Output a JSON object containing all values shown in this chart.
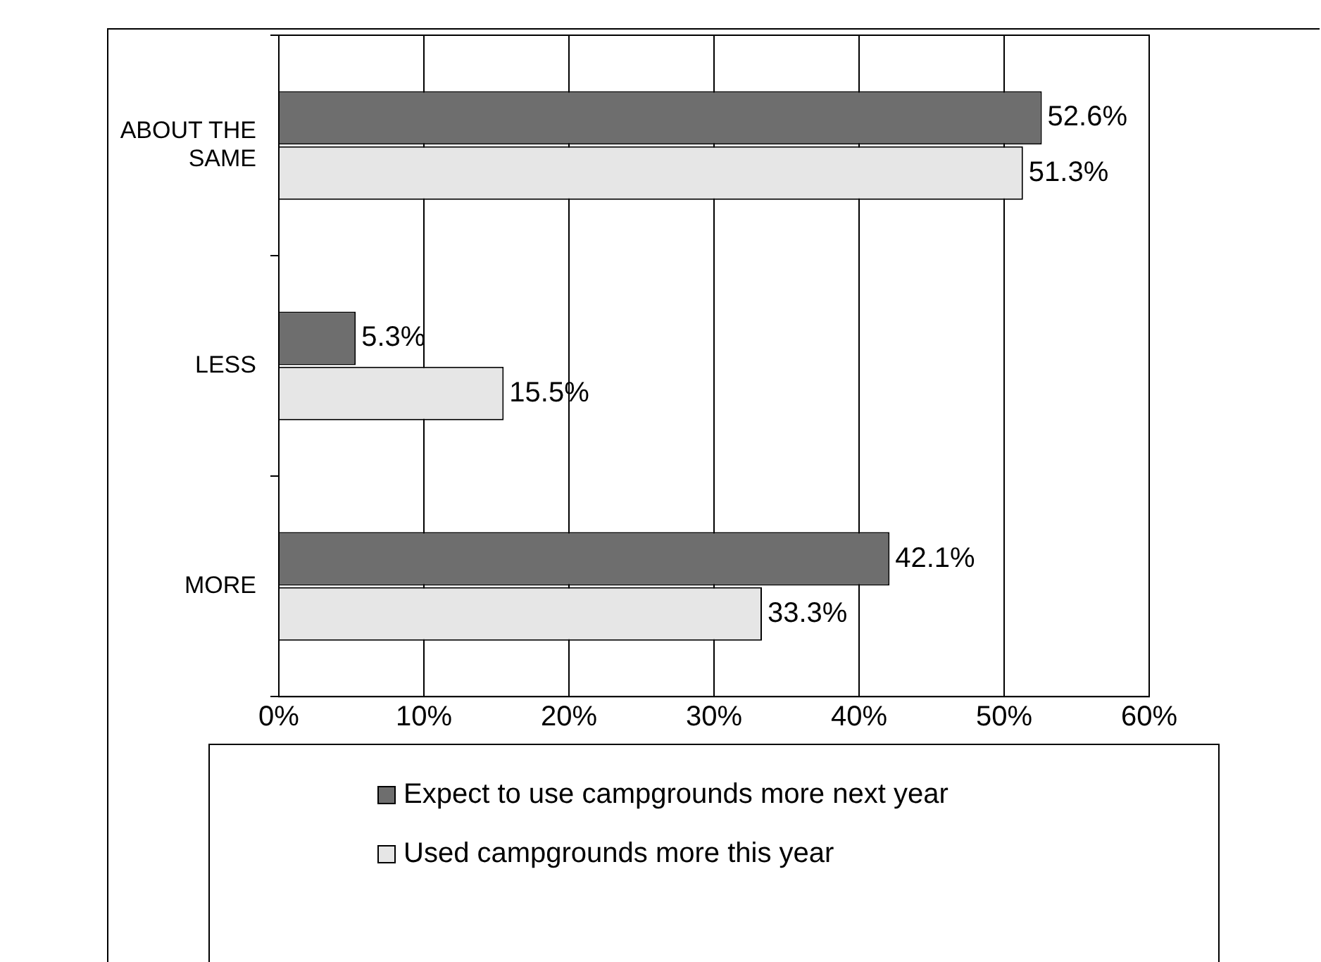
{
  "chart_data": {
    "type": "bar",
    "orientation": "horizontal",
    "categories": [
      "ABOUT THE SAME",
      "LESS",
      "MORE"
    ],
    "series": [
      {
        "name": "Expect to use campgrounds more next year",
        "color": "#6e6e6e",
        "values": [
          52.6,
          5.3,
          42.1
        ],
        "value_labels": [
          "52.6%",
          "5.3%",
          "42.1%"
        ]
      },
      {
        "name": "Used campgrounds more this year",
        "color": "#e6e6e6",
        "values": [
          51.3,
          15.5,
          33.3
        ],
        "value_labels": [
          "51.3%",
          "15.5%",
          "33.3%"
        ]
      }
    ],
    "xlim": [
      0,
      60
    ],
    "xticks": [
      {
        "value": 0,
        "label": "0%"
      },
      {
        "value": 10,
        "label": "10%"
      },
      {
        "value": 20,
        "label": "20%"
      },
      {
        "value": 30,
        "label": "30%"
      },
      {
        "value": 40,
        "label": "40%"
      },
      {
        "value": 50,
        "label": "50%"
      },
      {
        "value": 60,
        "label": "60%"
      }
    ],
    "grid": "x",
    "legend": "bottom"
  }
}
